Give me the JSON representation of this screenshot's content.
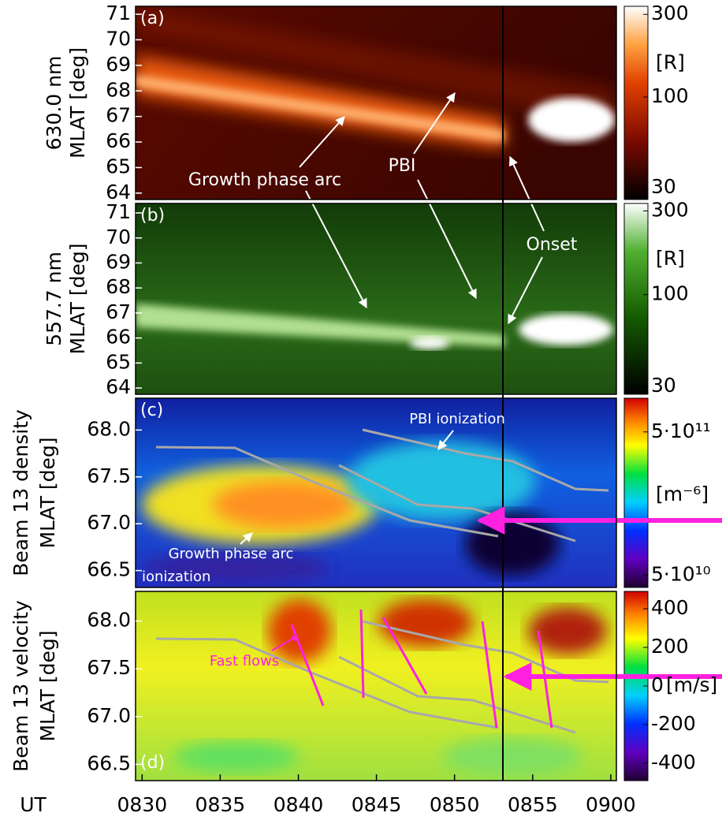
{
  "figure": {
    "x_axis": {
      "label": "UT",
      "xlim": [
        8.493,
        9.006
      ],
      "xticks": [
        {
          "value": 8.5,
          "label": "0830"
        },
        {
          "value": 8.5833,
          "label": "0835"
        },
        {
          "value": 8.6667,
          "label": "0840"
        },
        {
          "value": 8.75,
          "label": "0845"
        },
        {
          "value": 8.8333,
          "label": "0850"
        },
        {
          "value": 8.9167,
          "label": "0855"
        },
        {
          "value": 9.0,
          "label": "0900"
        }
      ]
    },
    "panels": [
      {
        "label": "(a)",
        "ylabel": [
          "630.0 nm",
          "MLAT [deg]"
        ],
        "ylim": [
          63.75,
          71.31
        ],
        "yticks": [
          64,
          65,
          66,
          67,
          68,
          69,
          70,
          71
        ],
        "colorbar": {
          "scale": "log",
          "lim": [
            25.6,
            334
          ],
          "ticks": [
            30,
            100,
            300
          ],
          "unit": "[R]"
        }
      },
      {
        "label": "(b)",
        "ylabel": [
          "557.7 nm",
          "MLAT [deg]"
        ],
        "ylim": [
          63.75,
          71.38
        ],
        "yticks": [
          64,
          65,
          66,
          67,
          68,
          69,
          70,
          71
        ],
        "colorbar": {
          "scale": "log",
          "lim": [
            27.1,
            331
          ],
          "ticks": [
            30,
            100,
            300
          ],
          "unit": "[R]"
        }
      },
      {
        "label": "(c)",
        "ylabel": [
          "Beam 13 density",
          "MLAT [deg]"
        ],
        "ylim": [
          66.32,
          68.34
        ],
        "yticks": [
          {
            "value": 66.5,
            "label": "66.5"
          },
          {
            "value": 67,
            "label": "67.0"
          },
          {
            "value": 67.5,
            "label": "67.5"
          },
          {
            "value": 68,
            "label": "68.0"
          }
        ],
        "colorbar": {
          "scale": "log",
          "lim": [
            41000000000,
            860000000000
          ],
          "ticks": [
            {
              "value": 50000000000,
              "label": "5·10¹⁰"
            },
            {
              "value": 500000000000,
              "label": "5·10¹¹"
            }
          ],
          "unit": "[m⁻⁶]"
        }
      },
      {
        "label": "(d)",
        "ylabel": [
          "Beam 13 velocity",
          "MLAT [deg]"
        ],
        "ylim": [
          66.33,
          68.31
        ],
        "yticks": [
          {
            "value": 66.5,
            "label": "66.5"
          },
          {
            "value": 67,
            "label": "67.0"
          },
          {
            "value": 67.5,
            "label": "67.5"
          },
          {
            "value": 68,
            "label": "68.0"
          }
        ],
        "colorbar": {
          "scale": "linear",
          "lim": [
            -490,
            490
          ],
          "ticks": [
            -400,
            -200,
            0,
            200,
            400
          ],
          "unit": "[m/s]"
        }
      }
    ],
    "annotations": [
      "Growth phase arc",
      "PBI",
      "Onset",
      "PBI ionization",
      "Growth phase arc",
      "ionization",
      "Fast flows"
    ]
  }
}
